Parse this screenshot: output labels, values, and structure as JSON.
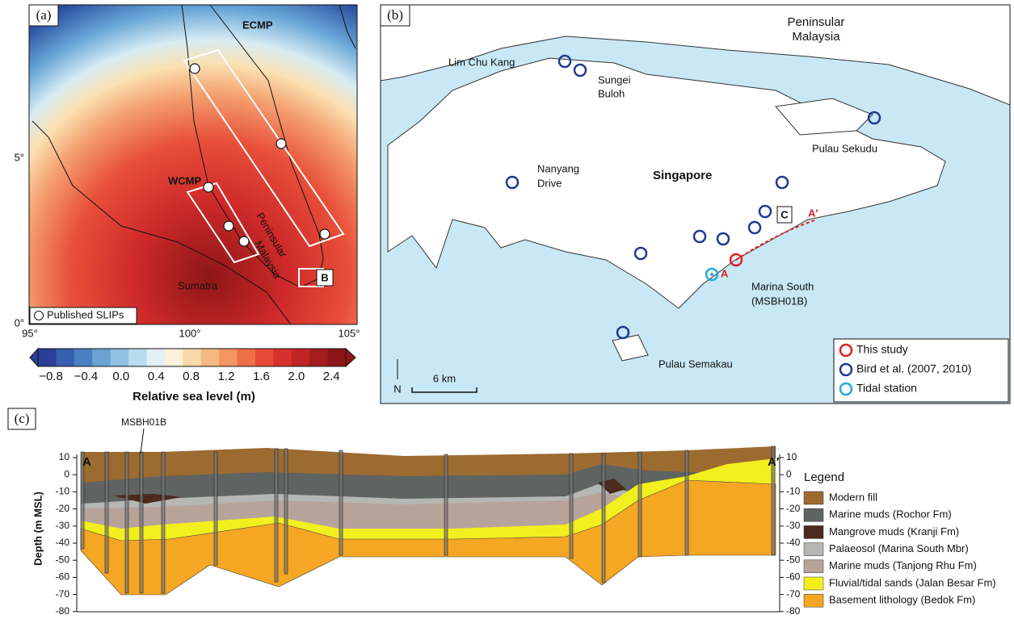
{
  "panel_a": {
    "label": "(a)",
    "ecmp": "ECMP",
    "wcmp": "WCMP",
    "peninsular": [
      "Peninsular",
      "Malaysia"
    ],
    "sumatra": "Sumatra",
    "box_b": "B",
    "legend": "Published SLIPs",
    "lat_ticks": [
      "5°",
      "0°"
    ],
    "lon_ticks": [
      "95°",
      "100°",
      "105°"
    ],
    "colorbar": {
      "ticks": [
        "−0.8",
        "−0.4",
        "0.0",
        "0.4",
        "0.8",
        "1.2",
        "1.6",
        "2.0",
        "2.4"
      ],
      "title": "Relative sea level (m)"
    }
  },
  "panel_b": {
    "label": "(b)",
    "peninsular": [
      "Peninsular",
      "Malaysia"
    ],
    "lim_chu_kang": "Lim Chu Kang",
    "sungei_buloh": [
      "Sungei",
      "Buloh"
    ],
    "pulau_sekudu": "Pulau Sekudu",
    "nanyang": [
      "Nanyang",
      "Drive"
    ],
    "singapore": "Singapore",
    "box_c": "C",
    "a_prime": "A′",
    "a": "A",
    "marina": [
      "Marina South",
      "(MSBH01B)"
    ],
    "semakau": "Pulau Semakau",
    "north": "N",
    "scale": "6 km",
    "legend": [
      "This study",
      "Bird et al. (2007, 2010)",
      "Tidal station"
    ]
  },
  "panel_c": {
    "label": "(c)",
    "a": "A",
    "a_prime": "A′",
    "borehole": "MSBH01B",
    "y_title": "Depth (m MSL)",
    "ticks": [
      "10",
      "0",
      "-10",
      "-20",
      "-30",
      "-40",
      "-50",
      "-60",
      "-70",
      "-80"
    ],
    "legend_title": "Legend",
    "legend": [
      "Modern fill",
      "Marine muds (Rochor Fm)",
      "Mangrove muds (Kranji Fm)",
      "Palaeosol (Marina South Mbr)",
      "Marine muds (Tanjong Rhu Fm)",
      "Fluvial/tidal sands (Jalan Besar Fm)",
      "Basement lithology (Bedok Fm)"
    ]
  }
}
